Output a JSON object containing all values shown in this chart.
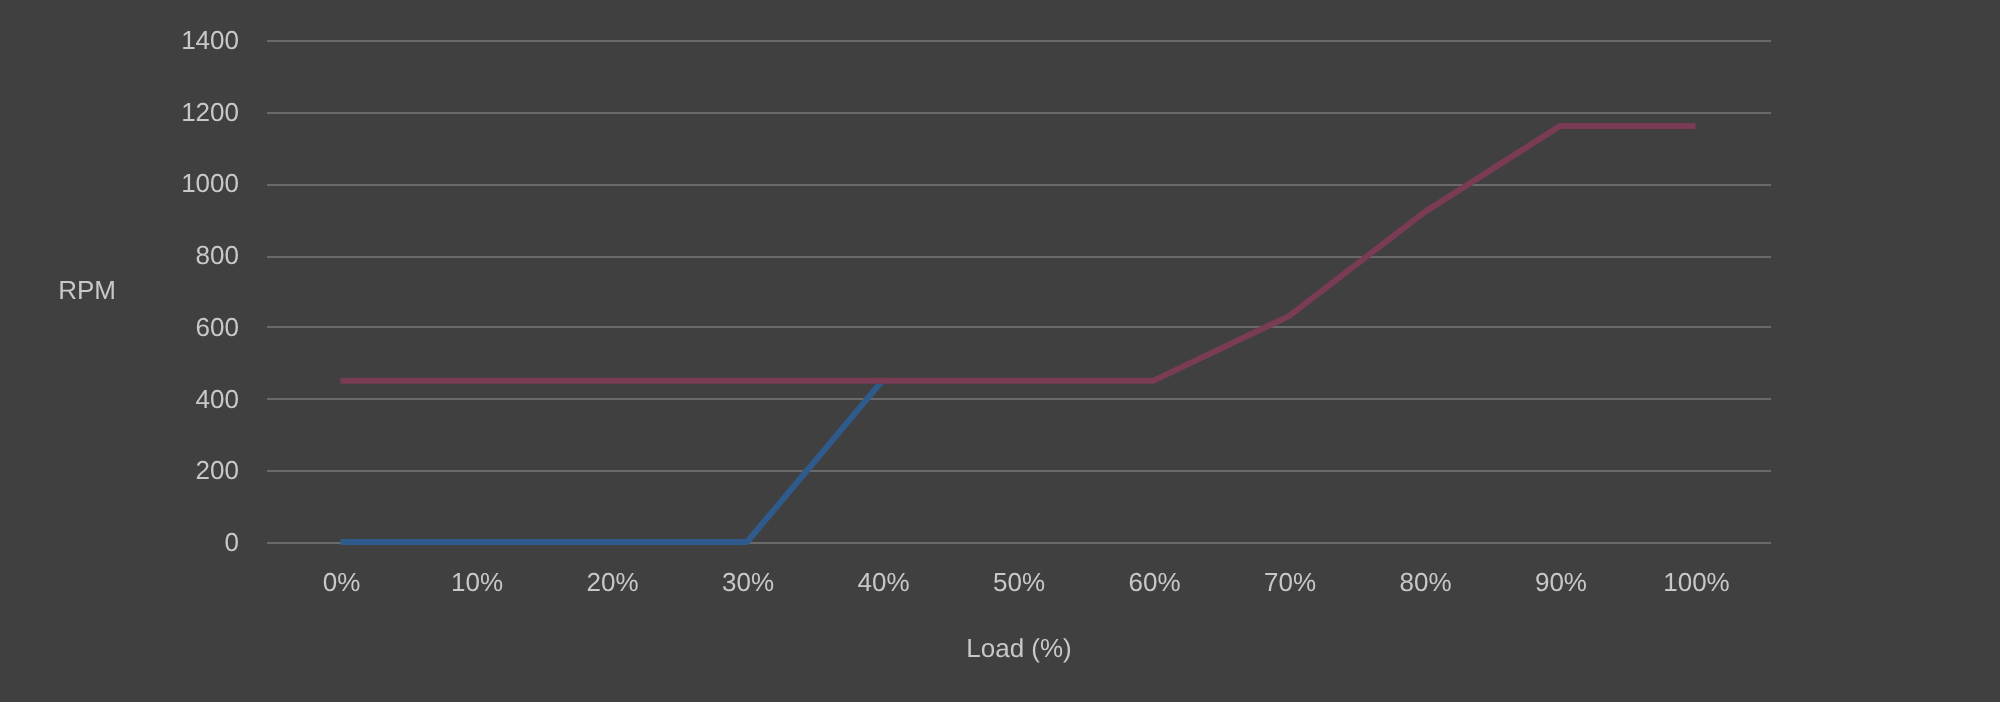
{
  "chart_data": {
    "type": "line",
    "xlabel": "Load (%)",
    "ylabel": "RPM",
    "categories": [
      "0%",
      "10%",
      "20%",
      "30%",
      "40%",
      "50%",
      "60%",
      "70%",
      "80%",
      "90%",
      "100%"
    ],
    "series": [
      {
        "color": "#7a3b55",
        "values": [
          450,
          450,
          450,
          450,
          450,
          450,
          450,
          630,
          920,
          1160,
          1160
        ]
      },
      {
        "color": "#2e5b8c",
        "values": [
          0,
          0,
          0,
          0,
          450,
          null,
          null,
          null,
          null,
          null,
          null
        ]
      }
    ],
    "ylim": [
      0,
      1400
    ],
    "yticks": [
      0,
      200,
      400,
      600,
      800,
      1000,
      1200,
      1400
    ],
    "grid": "y",
    "marker": "none",
    "line_style": "solid"
  }
}
